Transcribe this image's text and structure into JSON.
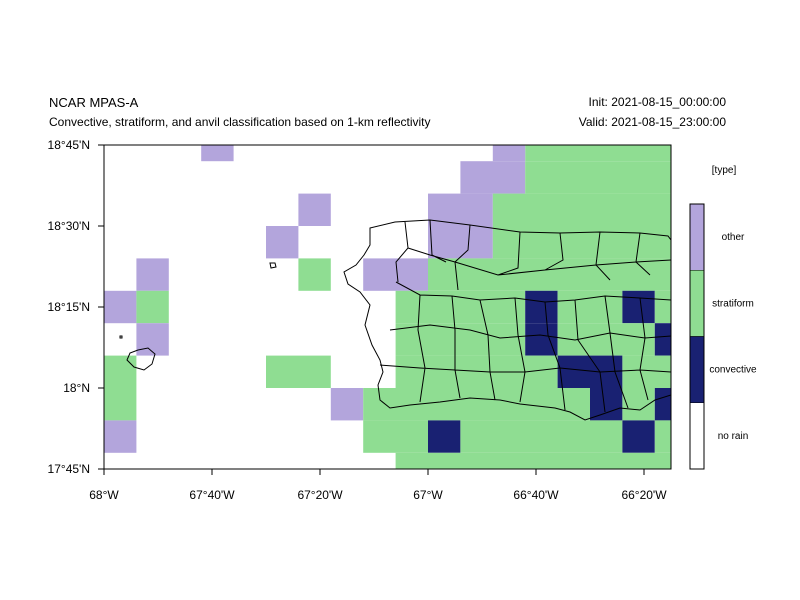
{
  "header": {
    "model": "NCAR MPAS-A",
    "subtitle": "Convective, stratiform, and anvil classification based on 1-km reflectivity",
    "init": "Init: 2021-08-15_00:00:00",
    "valid": "Valid: 2021-08-15_23:00:00"
  },
  "map": {
    "lon_range": [
      -68.0,
      -66.25
    ],
    "lat_range": [
      17.75,
      18.75
    ],
    "cell_size_deg": 0.1,
    "x_ticks": [
      {
        "value": -68.0,
        "label": "68°W"
      },
      {
        "value": -67.6667,
        "label": "67°40'W"
      },
      {
        "value": -67.3333,
        "label": "67°20'W"
      },
      {
        "value": -67.0,
        "label": "67°W"
      },
      {
        "value": -66.6667,
        "label": "66°40'W"
      },
      {
        "value": -66.3333,
        "label": "66°20'W"
      }
    ],
    "y_ticks": [
      {
        "value": 17.75,
        "label": "17°45'N"
      },
      {
        "value": 18.0,
        "label": "18°N"
      },
      {
        "value": 18.25,
        "label": "18°15'N"
      },
      {
        "value": 18.5,
        "label": "18°30'N"
      },
      {
        "value": 18.75,
        "label": "18°45'N"
      }
    ]
  },
  "legend": {
    "title": "[type]",
    "items": [
      {
        "key": "other",
        "label": "other",
        "color": "#b3a5dc"
      },
      {
        "key": "stratiform",
        "label": "stratiform",
        "color": "#8fdd92"
      },
      {
        "key": "convective",
        "label": "convective",
        "color": "#192172"
      },
      {
        "key": "no_rain",
        "label": "no rain",
        "color": "#ffffff"
      }
    ]
  },
  "colors": {
    "other": "#b3a5dc",
    "stratiform": "#8fdd92",
    "convective": "#192172",
    "no_rain": "#ffffff",
    "border": "#000000"
  },
  "chart_data": {
    "type": "heatmap",
    "x_unit": "longitude (deg)",
    "y_unit": "latitude (deg)",
    "categories": [
      "no rain",
      "convective",
      "stratiform",
      "other"
    ],
    "bands": [
      {
        "lat": [
          18.7,
          18.75
        ],
        "fill": "stratiform",
        "segments": [
          {
            "lon": [
              -66.7,
              -66.25
            ],
            "type": "stratiform"
          },
          {
            "lon": [
              -66.8,
              -66.7
            ],
            "type": "other"
          },
          {
            "lon": [
              -67.7,
              -67.6
            ],
            "type": "other"
          }
        ]
      },
      {
        "lat": [
          18.6,
          18.7
        ],
        "segments": [
          {
            "lon": [
              -66.9,
              -66.7
            ],
            "type": "other"
          },
          {
            "lon": [
              -66.7,
              -66.25
            ],
            "type": "stratiform"
          }
        ]
      },
      {
        "lat": [
          18.5,
          18.6
        ],
        "segments": [
          {
            "lon": [
              -67.4,
              -67.3
            ],
            "type": "other"
          },
          {
            "lon": [
              -67.0,
              -66.8
            ],
            "type": "other"
          },
          {
            "lon": [
              -66.8,
              -66.25
            ],
            "type": "stratiform"
          }
        ]
      },
      {
        "lat": [
          18.4,
          18.5
        ],
        "segments": [
          {
            "lon": [
              -67.5,
              -67.4
            ],
            "type": "other"
          },
          {
            "lon": [
              -67.0,
              -66.8
            ],
            "type": "other"
          },
          {
            "lon": [
              -66.8,
              -66.25
            ],
            "type": "stratiform"
          }
        ]
      },
      {
        "lat": [
          18.3,
          18.4
        ],
        "segments": [
          {
            "lon": [
              -67.9,
              -67.8
            ],
            "type": "other"
          },
          {
            "lon": [
              -67.4,
              -67.3
            ],
            "type": "stratiform"
          },
          {
            "lon": [
              -67.2,
              -67.0
            ],
            "type": "other"
          },
          {
            "lon": [
              -67.0,
              -66.25
            ],
            "type": "stratiform"
          }
        ]
      },
      {
        "lat": [
          18.2,
          18.3
        ],
        "segments": [
          {
            "lon": [
              -68.0,
              -67.9
            ],
            "type": "other"
          },
          {
            "lon": [
              -67.9,
              -67.8
            ],
            "type": "stratiform"
          },
          {
            "lon": [
              -67.1,
              -66.7
            ],
            "type": "stratiform"
          },
          {
            "lon": [
              -66.7,
              -66.6
            ],
            "type": "convective"
          },
          {
            "lon": [
              -66.6,
              -66.4
            ],
            "type": "stratiform"
          },
          {
            "lon": [
              -66.4,
              -66.3
            ],
            "type": "convective"
          },
          {
            "lon": [
              -66.3,
              -66.25
            ],
            "type": "stratiform"
          }
        ]
      },
      {
        "lat": [
          18.1,
          18.2
        ],
        "segments": [
          {
            "lon": [
              -67.9,
              -67.8
            ],
            "type": "other"
          },
          {
            "lon": [
              -67.1,
              -66.7
            ],
            "type": "stratiform"
          },
          {
            "lon": [
              -66.7,
              -66.6
            ],
            "type": "convective"
          },
          {
            "lon": [
              -66.6,
              -66.3
            ],
            "type": "stratiform"
          },
          {
            "lon": [
              -66.3,
              -66.25
            ],
            "type": "convective"
          }
        ]
      },
      {
        "lat": [
          18.0,
          18.1
        ],
        "segments": [
          {
            "lon": [
              -68.0,
              -67.9
            ],
            "type": "stratiform"
          },
          {
            "lon": [
              -67.5,
              -67.3
            ],
            "type": "stratiform"
          },
          {
            "lon": [
              -67.1,
              -66.6
            ],
            "type": "stratiform"
          },
          {
            "lon": [
              -66.6,
              -66.4
            ],
            "type": "convective"
          },
          {
            "lon": [
              -66.4,
              -66.25
            ],
            "type": "stratiform"
          }
        ]
      },
      {
        "lat": [
          17.9,
          18.0
        ],
        "segments": [
          {
            "lon": [
              -68.0,
              -67.9
            ],
            "type": "stratiform"
          },
          {
            "lon": [
              -67.3,
              -67.2
            ],
            "type": "other"
          },
          {
            "lon": [
              -67.2,
              -66.5
            ],
            "type": "stratiform"
          },
          {
            "lon": [
              -66.5,
              -66.4
            ],
            "type": "convective"
          },
          {
            "lon": [
              -66.4,
              -66.3
            ],
            "type": "stratiform"
          },
          {
            "lon": [
              -66.3,
              -66.25
            ],
            "type": "convective"
          }
        ]
      },
      {
        "lat": [
          17.8,
          17.9
        ],
        "segments": [
          {
            "lon": [
              -68.0,
              -67.9
            ],
            "type": "other"
          },
          {
            "lon": [
              -67.2,
              -67.0
            ],
            "type": "stratiform"
          },
          {
            "lon": [
              -67.0,
              -66.9
            ],
            "type": "convective"
          },
          {
            "lon": [
              -66.9,
              -66.4
            ],
            "type": "stratiform"
          },
          {
            "lon": [
              -66.4,
              -66.3
            ],
            "type": "convective"
          },
          {
            "lon": [
              -66.3,
              -66.25
            ],
            "type": "stratiform"
          }
        ]
      },
      {
        "lat": [
          17.75,
          17.8
        ],
        "segments": [
          {
            "lon": [
              -67.1,
              -66.25
            ],
            "type": "stratiform"
          }
        ]
      }
    ]
  }
}
